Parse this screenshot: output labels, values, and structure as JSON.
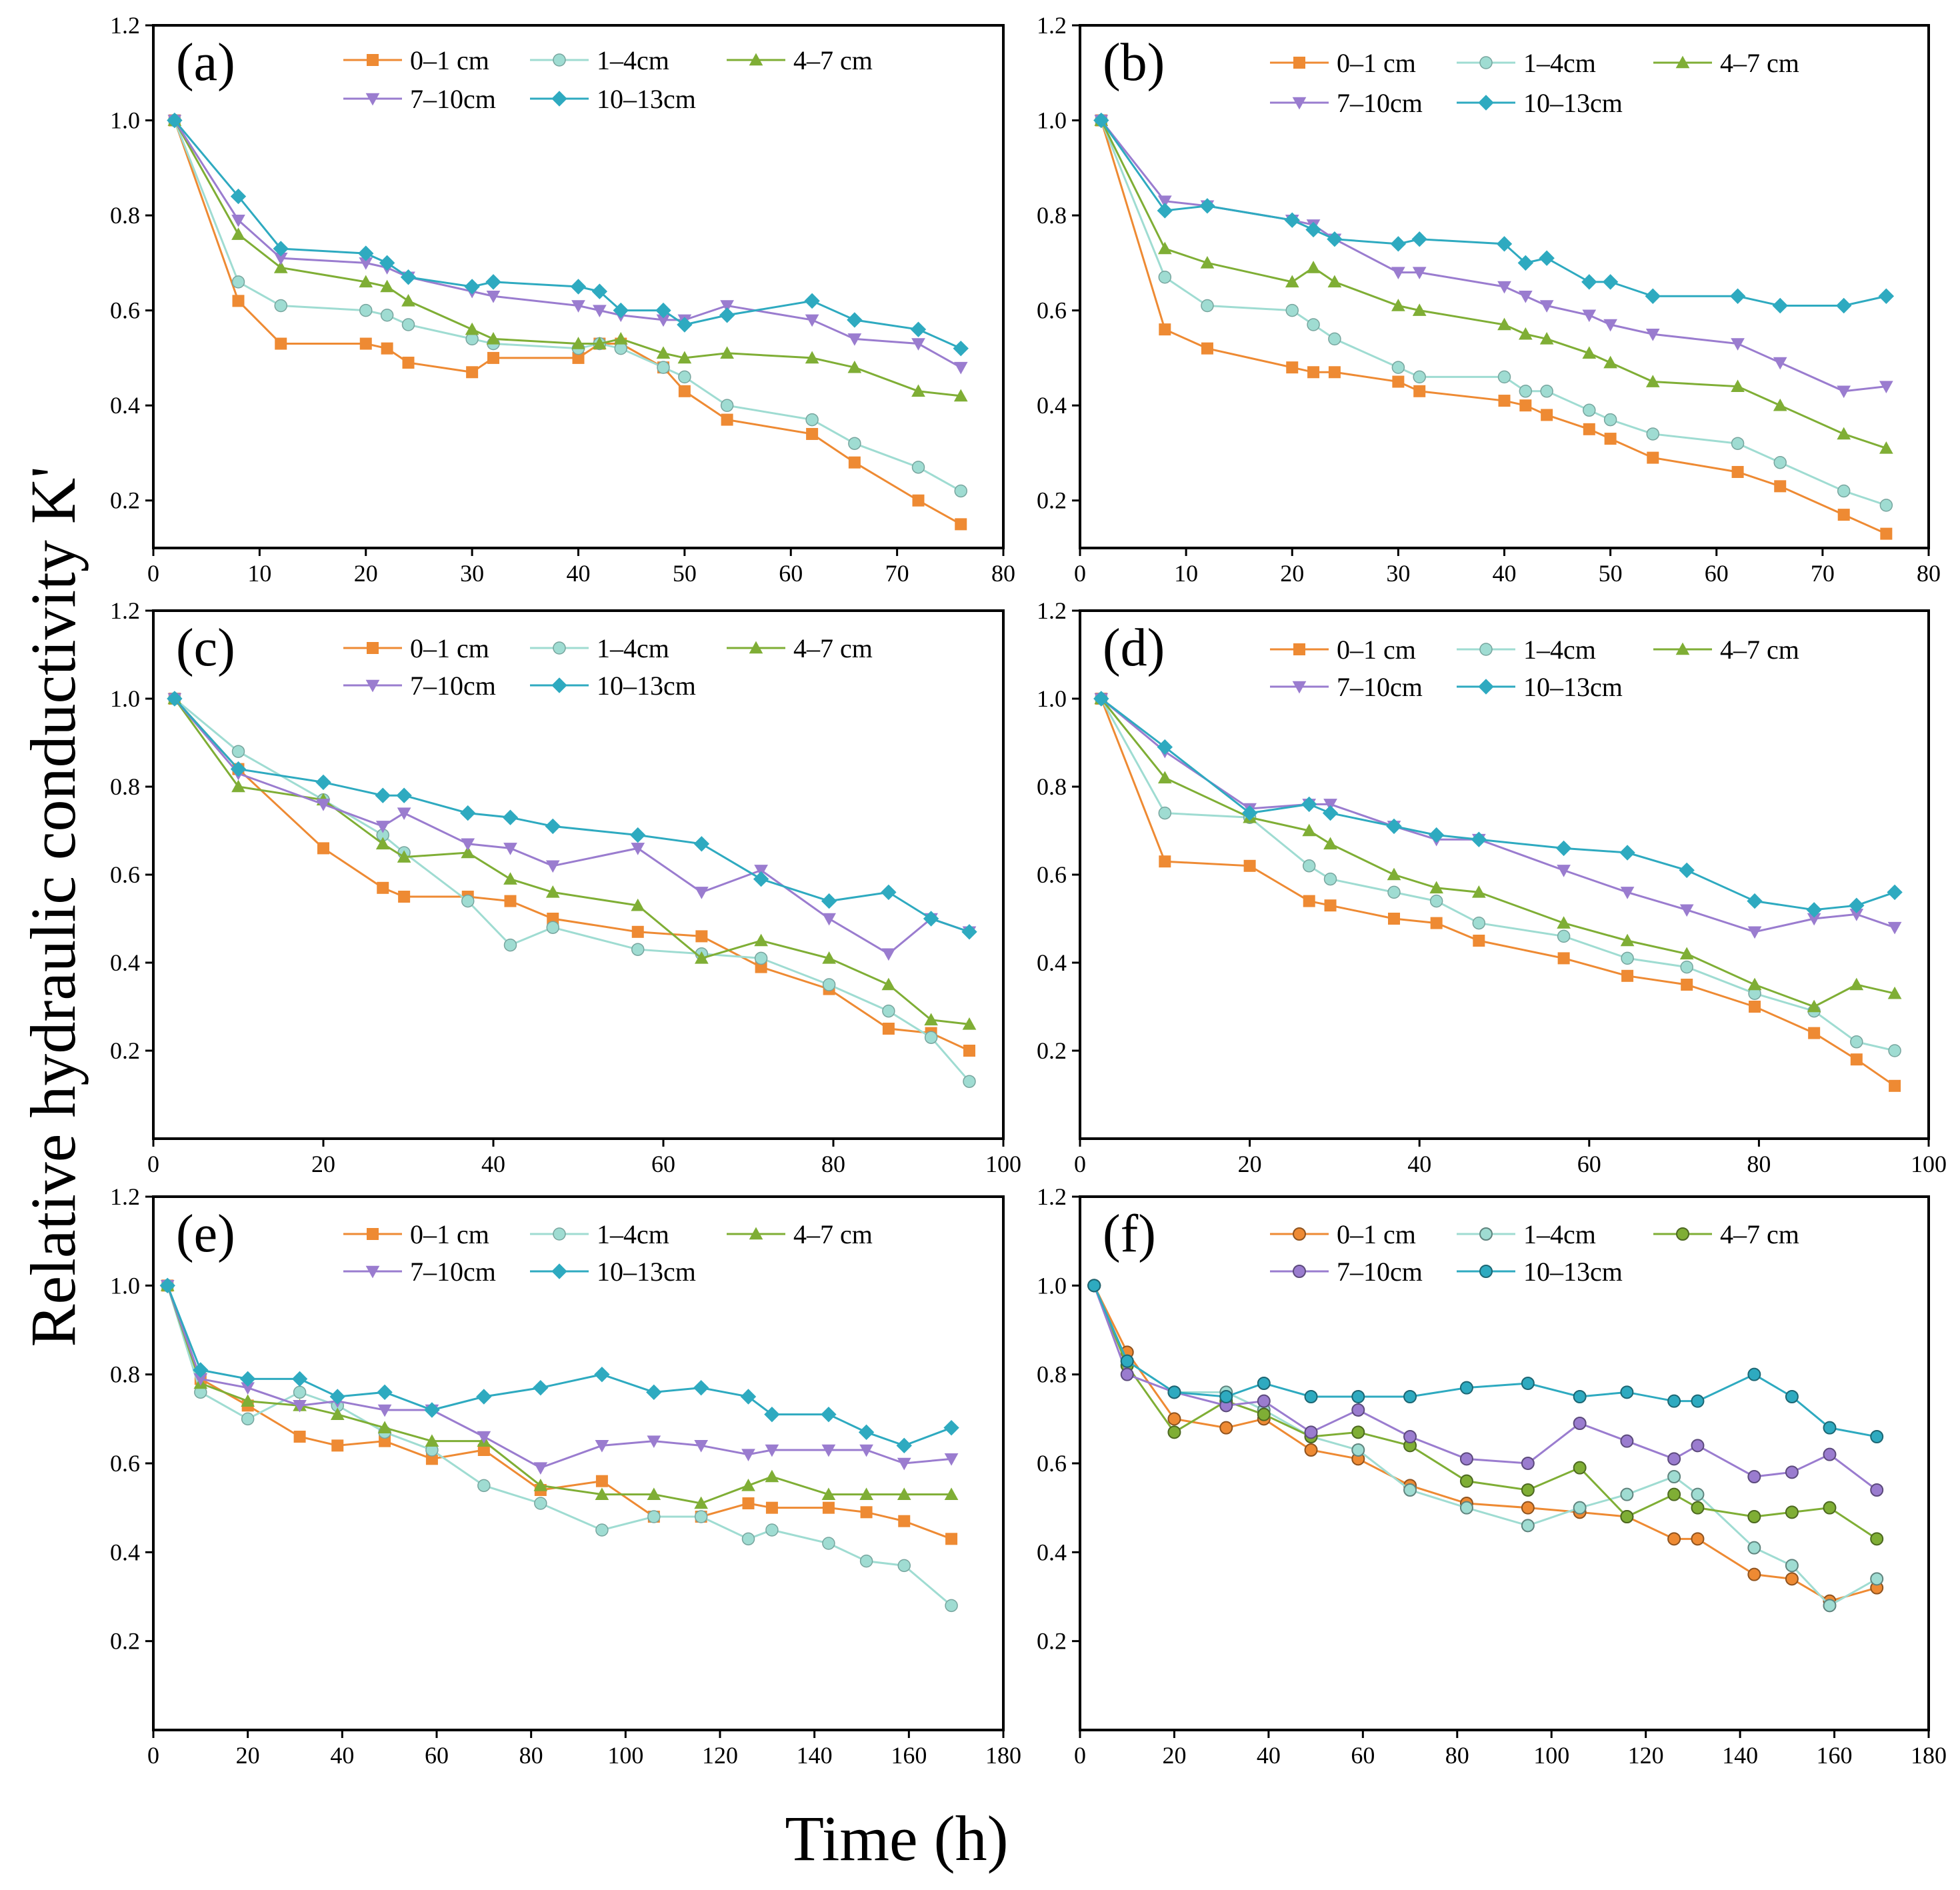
{
  "figure": {
    "ylabel": "Relative hydraulic conductivity K'",
    "xlabel": "Time (h)",
    "series_names": [
      "0–1 cm",
      "1–4cm",
      "4–7 cm",
      "7–10cm",
      "10–13cm"
    ]
  },
  "colors": {
    "s0": "#ee8a33",
    "s1": "#9fdcd2",
    "s2": "#7fae35",
    "s3": "#9a7ccf",
    "s4": "#2eaac0"
  },
  "chart_data": [
    {
      "type": "line",
      "panel": "(a)",
      "xlim": [
        0,
        80
      ],
      "ylim": [
        0.1,
        1.2
      ],
      "xticks": [
        0,
        10,
        20,
        30,
        40,
        50,
        60,
        70,
        80
      ],
      "yticks": [
        0.2,
        0.4,
        0.6,
        0.8,
        1.0,
        1.2
      ],
      "x": [
        2,
        8,
        12,
        20,
        22,
        24,
        30,
        32,
        40,
        42,
        44,
        48,
        50,
        54,
        62,
        66,
        72,
        76
      ],
      "series": [
        {
          "name": "0–1 cm",
          "values": [
            1.0,
            0.62,
            0.53,
            0.53,
            0.52,
            0.49,
            0.47,
            0.5,
            0.5,
            0.53,
            0.53,
            0.48,
            0.43,
            0.37,
            0.34,
            0.28,
            0.2,
            0.15
          ]
        },
        {
          "name": "1–4cm",
          "values": [
            1.0,
            0.66,
            0.61,
            0.6,
            0.59,
            0.57,
            0.54,
            0.53,
            0.52,
            0.53,
            0.52,
            0.48,
            0.46,
            0.4,
            0.37,
            0.32,
            0.27,
            0.22
          ]
        },
        {
          "name": "4–7 cm",
          "values": [
            1.0,
            0.76,
            0.69,
            0.66,
            0.65,
            0.62,
            0.56,
            0.54,
            0.53,
            0.53,
            0.54,
            0.51,
            0.5,
            0.51,
            0.5,
            0.48,
            0.43,
            0.42
          ]
        },
        {
          "name": "7–10cm",
          "values": [
            1.0,
            0.79,
            0.71,
            0.7,
            0.69,
            0.67,
            0.64,
            0.63,
            0.61,
            0.6,
            0.59,
            0.58,
            0.58,
            0.61,
            0.58,
            0.54,
            0.53,
            0.48
          ]
        },
        {
          "name": "10–13cm",
          "values": [
            1.0,
            0.84,
            0.73,
            0.72,
            0.7,
            0.67,
            0.65,
            0.66,
            0.65,
            0.64,
            0.6,
            0.6,
            0.57,
            0.59,
            0.62,
            0.58,
            0.56,
            0.52
          ]
        }
      ]
    },
    {
      "type": "line",
      "panel": "(b)",
      "xlim": [
        0,
        80
      ],
      "ylim": [
        0.1,
        1.2
      ],
      "xticks": [
        0,
        10,
        20,
        30,
        40,
        50,
        60,
        70,
        80
      ],
      "yticks": [
        0.2,
        0.4,
        0.6,
        0.8,
        1.0,
        1.2
      ],
      "x": [
        2,
        8,
        12,
        20,
        22,
        24,
        30,
        32,
        40,
        42,
        44,
        48,
        50,
        54,
        62,
        66,
        72,
        76
      ],
      "series": [
        {
          "name": "0–1 cm",
          "values": [
            1.0,
            0.56,
            0.52,
            0.48,
            0.47,
            0.47,
            0.45,
            0.43,
            0.41,
            0.4,
            0.38,
            0.35,
            0.33,
            0.29,
            0.26,
            0.23,
            0.17,
            0.13
          ]
        },
        {
          "name": "1–4cm",
          "values": [
            1.0,
            0.67,
            0.61,
            0.6,
            0.57,
            0.54,
            0.48,
            0.46,
            0.46,
            0.43,
            0.43,
            0.39,
            0.37,
            0.34,
            0.32,
            0.28,
            0.22,
            0.19
          ]
        },
        {
          "name": "4–7 cm",
          "values": [
            1.0,
            0.73,
            0.7,
            0.66,
            0.69,
            0.66,
            0.61,
            0.6,
            0.57,
            0.55,
            0.54,
            0.51,
            0.49,
            0.45,
            0.44,
            0.4,
            0.34,
            0.31
          ]
        },
        {
          "name": "7–10cm",
          "values": [
            1.0,
            0.83,
            0.82,
            0.79,
            0.78,
            0.75,
            0.68,
            0.68,
            0.65,
            0.63,
            0.61,
            0.59,
            0.57,
            0.55,
            0.53,
            0.49,
            0.43,
            0.44
          ]
        },
        {
          "name": "10–13cm",
          "values": [
            1.0,
            0.81,
            0.82,
            0.79,
            0.77,
            0.75,
            0.74,
            0.75,
            0.74,
            0.7,
            0.71,
            0.66,
            0.66,
            0.63,
            0.63,
            0.61,
            0.61,
            0.63
          ]
        }
      ]
    },
    {
      "type": "line",
      "panel": "(c)",
      "xlim": [
        0,
        100
      ],
      "ylim": [
        0.0,
        1.2
      ],
      "xticks": [
        0,
        20,
        40,
        60,
        80,
        100
      ],
      "yticks": [
        0.2,
        0.4,
        0.6,
        0.8,
        1.0,
        1.2
      ],
      "x": [
        2.5,
        10,
        20,
        27,
        29.5,
        37,
        42,
        47,
        57,
        64.5,
        71.5,
        79.5,
        86.5,
        91.5,
        96
      ],
      "series": [
        {
          "name": "0–1 cm",
          "values": [
            1.0,
            0.84,
            0.66,
            0.57,
            0.55,
            0.55,
            0.54,
            0.5,
            0.47,
            0.46,
            0.39,
            0.34,
            0.25,
            0.24,
            0.2
          ]
        },
        {
          "name": "1–4cm",
          "values": [
            1.0,
            0.88,
            0.77,
            0.69,
            0.65,
            0.54,
            0.44,
            0.48,
            0.43,
            0.42,
            0.41,
            0.35,
            0.29,
            0.23,
            0.13
          ]
        },
        {
          "name": "4–7 cm",
          "values": [
            1.0,
            0.8,
            0.77,
            0.67,
            0.64,
            0.65,
            0.59,
            0.56,
            0.53,
            0.41,
            0.45,
            0.41,
            0.35,
            0.27,
            0.26
          ]
        },
        {
          "name": "7–10cm",
          "values": [
            1.0,
            0.83,
            0.76,
            0.71,
            0.74,
            0.67,
            0.66,
            0.62,
            0.66,
            0.56,
            0.61,
            0.5,
            0.42,
            0.5,
            0.47
          ]
        },
        {
          "name": "10–13cm",
          "values": [
            1.0,
            0.84,
            0.81,
            0.78,
            0.78,
            0.74,
            0.73,
            0.71,
            0.69,
            0.67,
            0.59,
            0.54,
            0.56,
            0.5,
            0.47
          ]
        }
      ]
    },
    {
      "type": "line",
      "panel": "(d)",
      "xlim": [
        0,
        100
      ],
      "ylim": [
        0.0,
        1.2
      ],
      "xticks": [
        0,
        20,
        40,
        60,
        80,
        100
      ],
      "yticks": [
        0.2,
        0.4,
        0.6,
        0.8,
        1.0,
        1.2
      ],
      "x": [
        2.5,
        10,
        20,
        27,
        29.5,
        37,
        42,
        47,
        57,
        64.5,
        71.5,
        79.5,
        86.5,
        91.5,
        96
      ],
      "series": [
        {
          "name": "0–1 cm",
          "values": [
            1.0,
            0.63,
            0.62,
            0.54,
            0.53,
            0.5,
            0.49,
            0.45,
            0.41,
            0.37,
            0.35,
            0.3,
            0.24,
            0.18,
            0.12
          ]
        },
        {
          "name": "1–4cm",
          "values": [
            1.0,
            0.74,
            0.73,
            0.62,
            0.59,
            0.56,
            0.54,
            0.49,
            0.46,
            0.41,
            0.39,
            0.33,
            0.29,
            0.22,
            0.2
          ]
        },
        {
          "name": "4–7 cm",
          "values": [
            1.0,
            0.82,
            0.73,
            0.7,
            0.67,
            0.6,
            0.57,
            0.56,
            0.49,
            0.45,
            0.42,
            0.35,
            0.3,
            0.35,
            0.33
          ]
        },
        {
          "name": "7–10cm",
          "values": [
            1.0,
            0.88,
            0.75,
            0.76,
            0.76,
            0.71,
            0.68,
            0.68,
            0.61,
            0.56,
            0.52,
            0.47,
            0.5,
            0.51,
            0.48
          ]
        },
        {
          "name": "10–13cm",
          "values": [
            1.0,
            0.89,
            0.74,
            0.76,
            0.74,
            0.71,
            0.69,
            0.68,
            0.66,
            0.65,
            0.61,
            0.54,
            0.52,
            0.53,
            0.56
          ]
        }
      ]
    },
    {
      "type": "line",
      "panel": "(e)",
      "xlim": [
        0,
        180
      ],
      "ylim": [
        0.0,
        1.2
      ],
      "xticks": [
        0,
        20,
        40,
        60,
        80,
        100,
        120,
        140,
        160,
        180
      ],
      "yticks": [
        0.2,
        0.4,
        0.6,
        0.8,
        1.0,
        1.2
      ],
      "x": [
        3,
        10,
        20,
        31,
        39,
        49,
        59,
        70,
        82,
        95,
        106,
        116,
        126,
        131,
        143,
        151,
        159,
        169
      ],
      "series": [
        {
          "name": "0–1 cm",
          "values": [
            1.0,
            0.79,
            0.73,
            0.66,
            0.64,
            0.65,
            0.61,
            0.63,
            0.54,
            0.56,
            0.48,
            0.48,
            0.51,
            0.5,
            0.5,
            0.49,
            0.47,
            0.43
          ]
        },
        {
          "name": "1–4cm",
          "values": [
            1.0,
            0.76,
            0.7,
            0.76,
            0.73,
            0.67,
            0.63,
            0.55,
            0.51,
            0.45,
            0.48,
            0.48,
            0.43,
            0.45,
            0.42,
            0.38,
            0.37,
            0.28
          ]
        },
        {
          "name": "4–7 cm",
          "values": [
            1.0,
            0.78,
            0.74,
            0.73,
            0.71,
            0.68,
            0.65,
            0.65,
            0.55,
            0.53,
            0.53,
            0.51,
            0.55,
            0.57,
            0.53,
            0.53,
            0.53,
            0.53
          ]
        },
        {
          "name": "7–10cm",
          "values": [
            1.0,
            0.79,
            0.77,
            0.73,
            0.74,
            0.72,
            0.72,
            0.66,
            0.59,
            0.64,
            0.65,
            0.64,
            0.62,
            0.63,
            0.63,
            0.63,
            0.6,
            0.61
          ]
        },
        {
          "name": "10–13cm",
          "values": [
            1.0,
            0.81,
            0.79,
            0.79,
            0.75,
            0.76,
            0.72,
            0.75,
            0.77,
            0.8,
            0.76,
            0.77,
            0.75,
            0.71,
            0.71,
            0.67,
            0.64,
            0.68
          ]
        }
      ]
    },
    {
      "type": "line",
      "panel": "(f)",
      "xlim": [
        0,
        180
      ],
      "ylim": [
        0.0,
        1.2
      ],
      "xticks": [
        0,
        20,
        40,
        60,
        80,
        100,
        120,
        140,
        160,
        180
      ],
      "yticks": [
        0.2,
        0.4,
        0.6,
        0.8,
        1.0,
        1.2
      ],
      "x": [
        3,
        10,
        20,
        31,
        39,
        49,
        59,
        70,
        82,
        95,
        106,
        116,
        126,
        131,
        143,
        151,
        159,
        169
      ],
      "series": [
        {
          "name": "0–1 cm",
          "values": [
            1.0,
            0.85,
            0.7,
            0.68,
            0.7,
            0.63,
            0.61,
            0.55,
            0.51,
            0.5,
            0.49,
            0.48,
            0.43,
            0.43,
            0.35,
            0.34,
            0.29,
            0.32
          ]
        },
        {
          "name": "1–4cm",
          "values": [
            1.0,
            0.83,
            0.76,
            0.76,
            0.72,
            0.66,
            0.63,
            0.54,
            0.5,
            0.46,
            0.5,
            0.53,
            0.57,
            0.53,
            0.41,
            0.37,
            0.28,
            0.34
          ]
        },
        {
          "name": "4–7 cm",
          "values": [
            1.0,
            0.82,
            0.67,
            0.74,
            0.71,
            0.66,
            0.67,
            0.64,
            0.56,
            0.54,
            0.59,
            0.48,
            0.53,
            0.5,
            0.48,
            0.49,
            0.5,
            0.43
          ]
        },
        {
          "name": "7–10cm",
          "values": [
            1.0,
            0.8,
            0.76,
            0.73,
            0.74,
            0.67,
            0.72,
            0.66,
            0.61,
            0.6,
            0.69,
            0.65,
            0.61,
            0.64,
            0.57,
            0.58,
            0.62,
            0.54
          ]
        },
        {
          "name": "10–13cm",
          "values": [
            1.0,
            0.83,
            0.76,
            0.75,
            0.78,
            0.75,
            0.75,
            0.75,
            0.77,
            0.78,
            0.75,
            0.76,
            0.74,
            0.74,
            0.8,
            0.75,
            0.68,
            0.66
          ]
        }
      ]
    }
  ]
}
